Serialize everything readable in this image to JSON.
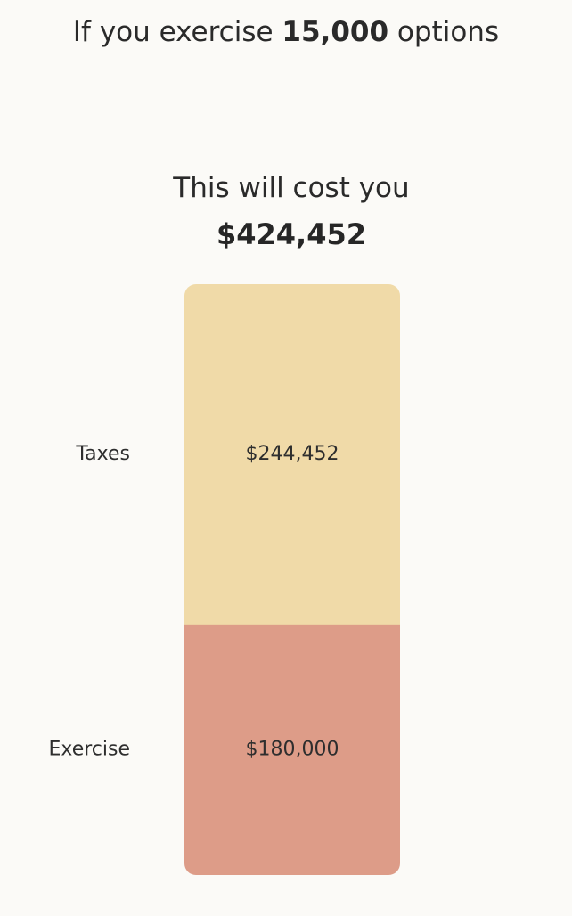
{
  "headline": {
    "prefix": "If you exercise ",
    "quantity": "15,000",
    "suffix": " options"
  },
  "summary": {
    "label": "This will cost you",
    "total": "$424,452"
  },
  "colors": {
    "taxes": "#f0daa8",
    "exercise": "#dd9c88",
    "background": "#fbfaf7"
  },
  "chart_data": {
    "type": "bar",
    "stacked": true,
    "categories": [
      "Taxes",
      "Exercise"
    ],
    "values": [
      244452,
      180000
    ],
    "value_labels": [
      "$244,452",
      "$180,000"
    ],
    "title": "",
    "xlabel": "",
    "ylabel": ""
  }
}
